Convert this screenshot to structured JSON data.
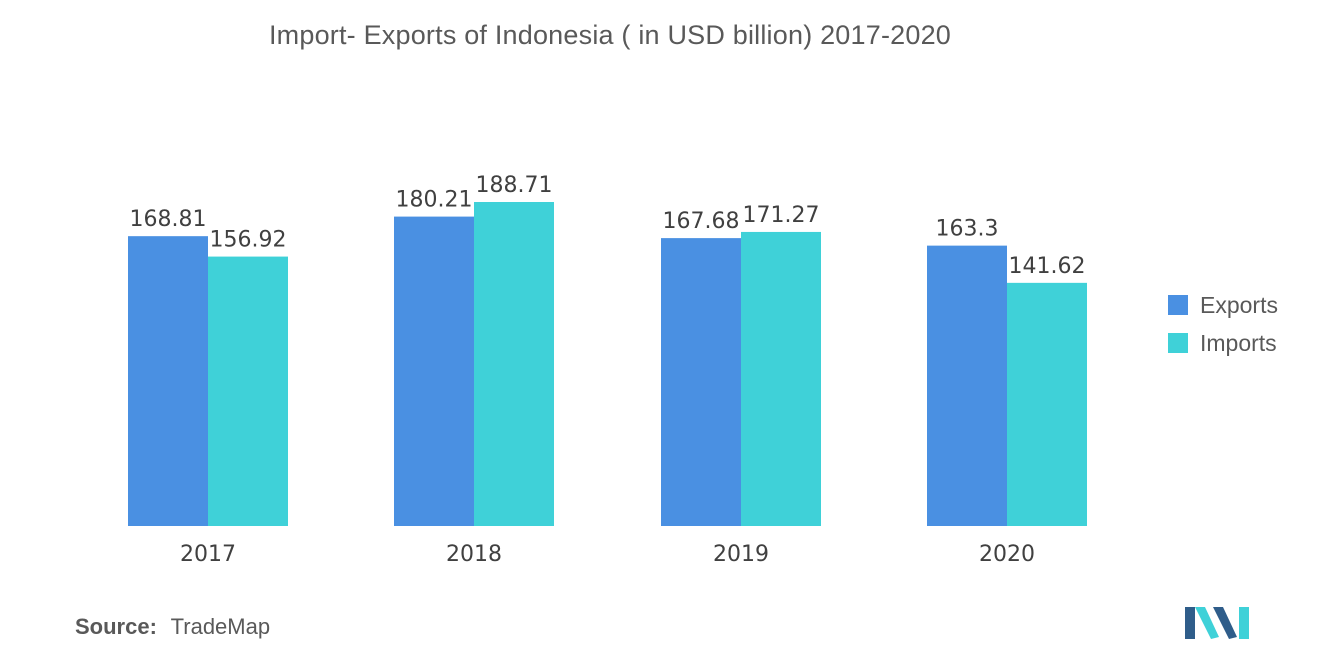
{
  "chart_data": {
    "type": "bar",
    "title": "Import- Exports of Indonesia ( in USD billion) 2017-2020",
    "categories": [
      "2017",
      "2018",
      "2019",
      "2020"
    ],
    "series": [
      {
        "name": "Exports",
        "values": [
          168.81,
          180.21,
          167.68,
          163.3
        ],
        "labels": [
          "168.81",
          "180.21",
          "167.68",
          "163.3"
        ],
        "color": "#4a90e2"
      },
      {
        "name": "Imports",
        "values": [
          156.92,
          188.71,
          171.27,
          141.62
        ],
        "labels": [
          "156.92",
          "188.71",
          "171.27",
          "141.62"
        ],
        "color": "#3fd1d8"
      }
    ],
    "ylim": [
      0,
      188.71
    ],
    "grid": false,
    "legend_position": "right"
  },
  "source": {
    "label": "Source:",
    "value": "TradeMap"
  },
  "logo": {
    "name": "mordor-intelligence-logo-icon",
    "colors": [
      "#2f5d8a",
      "#3fd1d8"
    ]
  }
}
